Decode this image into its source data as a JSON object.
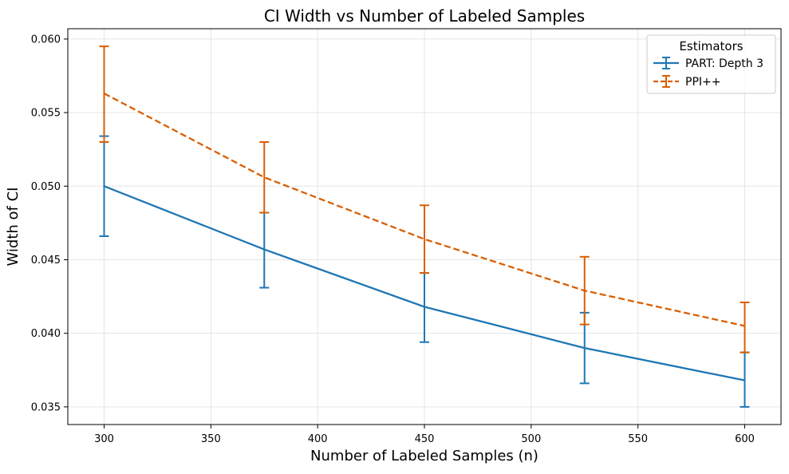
{
  "chart_data": {
    "type": "line",
    "title": "CI Width vs Number of Labeled Samples",
    "xlabel": "Number of Labeled Samples (n)",
    "ylabel": "Width of CI",
    "xlim": [
      283,
      617
    ],
    "ylim": [
      0.0338,
      0.0607
    ],
    "xticks": [
      300,
      350,
      400,
      450,
      500,
      550,
      600
    ],
    "yticks": [
      0.035,
      0.04,
      0.045,
      0.05,
      0.055,
      0.06
    ],
    "ytick_labels": [
      "0.035",
      "0.040",
      "0.045",
      "0.050",
      "0.055",
      "0.060"
    ],
    "grid": true,
    "legend": {
      "title": "Estimators",
      "position": "top-right"
    },
    "x": [
      300,
      375,
      450,
      525,
      600
    ],
    "series": [
      {
        "name": "PART: Depth 3",
        "color": "#1f77b4",
        "line_style": "solid",
        "values": [
          0.05,
          0.0457,
          0.0418,
          0.039,
          0.0368
        ],
        "err_low": [
          0.0466,
          0.0431,
          0.0394,
          0.0366,
          0.035
        ],
        "err_high": [
          0.0534,
          0.0482,
          0.0441,
          0.0414,
          0.0387
        ]
      },
      {
        "name": "PPI++",
        "color": "#d95f02",
        "line_style": "dashed",
        "values": [
          0.0563,
          0.0506,
          0.0464,
          0.0429,
          0.0405
        ],
        "err_low": [
          0.053,
          0.0482,
          0.0441,
          0.0406,
          0.0387
        ],
        "err_high": [
          0.0595,
          0.053,
          0.0487,
          0.0452,
          0.0421
        ]
      }
    ]
  }
}
